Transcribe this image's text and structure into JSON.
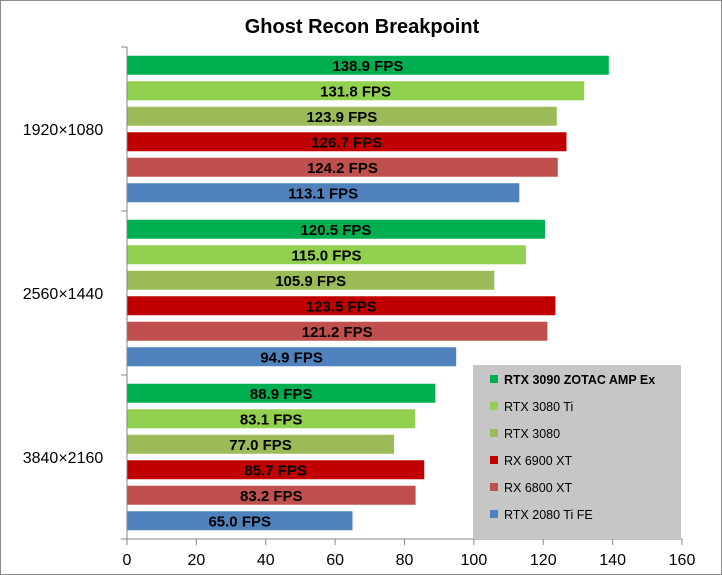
{
  "chart_data": {
    "type": "bar",
    "orientation": "horizontal",
    "title": "Ghost Recon Breakpoint",
    "xlabel": "",
    "ylabel": "",
    "xlim": [
      0,
      160
    ],
    "x_ticks": [
      0,
      20,
      40,
      60,
      80,
      100,
      120,
      140,
      160
    ],
    "categories": [
      "1920×1080",
      "2560×1440",
      "3840×2160"
    ],
    "value_suffix": " FPS",
    "grid": false,
    "legend_position": "bottom-right",
    "series": [
      {
        "name": "RTX 3090 ZOTAC AMP Ex",
        "color": "#00b050",
        "label_color": "#000000",
        "bold_legend": true,
        "values": [
          138.9,
          120.5,
          88.9
        ]
      },
      {
        "name": "RTX 3080 Ti",
        "color": "#92d050",
        "label_color": "#000000",
        "bold_legend": false,
        "values": [
          131.8,
          115.0,
          83.1
        ]
      },
      {
        "name": "RTX 3080",
        "color": "#9bbb59",
        "label_color": "#000000",
        "bold_legend": false,
        "values": [
          123.9,
          105.9,
          77.0
        ]
      },
      {
        "name": "RX 6900 XT",
        "color": "#c00000",
        "label_color": "#000000",
        "bold_legend": false,
        "values": [
          126.7,
          123.5,
          85.7
        ]
      },
      {
        "name": "RX 6800 XT",
        "color": "#c0504d",
        "label_color": "#000000",
        "bold_legend": false,
        "values": [
          124.2,
          121.2,
          83.2
        ]
      },
      {
        "name": "RTX 2080 Ti FE",
        "color": "#4f81bd",
        "label_color": "#000000",
        "bold_legend": false,
        "values": [
          113.1,
          94.9,
          65.0
        ]
      }
    ]
  }
}
